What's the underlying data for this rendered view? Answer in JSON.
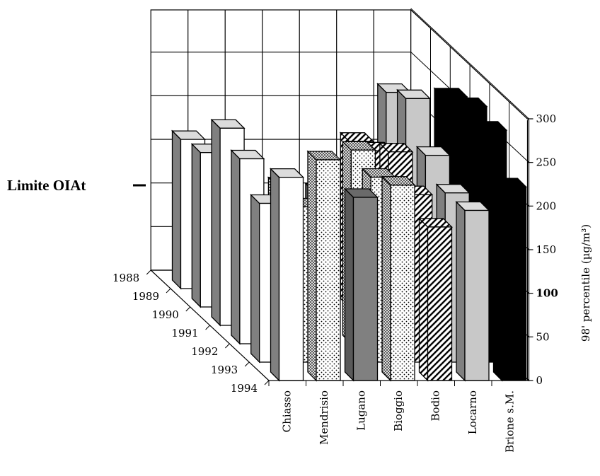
{
  "chart_data": {
    "type": "bar",
    "ylabel": "98' percentile (µg/m³)",
    "yticks": [
      0,
      50,
      100,
      150,
      200,
      250,
      300
    ],
    "ylim": [
      0,
      300
    ],
    "limit_label": "Limite OIAt",
    "limit_value": 100,
    "years": [
      "1988",
      "1989",
      "1990",
      "1991",
      "1992",
      "1993",
      "1994"
    ],
    "stations": [
      "Chiasso",
      "Mendrisio",
      "Lugano",
      "Bioggio",
      "Bodio",
      "Locarno",
      "Brione s.M."
    ],
    "station_colors": {
      "Chiasso": "#ffffff",
      "Mendrisio": "#dcdcdc",
      "Lugano": "#808080",
      "Bioggio": "#ffffff",
      "Bodio": "#bbbbbb",
      "Locarno": "#c8c8c8",
      "Brione s.M.": "#000000"
    },
    "series": [
      {
        "name": "Chiasso",
        "values": [
          null,
          171,
          177,
          226,
          212,
          182,
          233
        ]
      },
      {
        "name": "Mendrisio",
        "values": [
          null,
          null,
          null,
          null,
          181,
          178,
          253
        ]
      },
      {
        "name": "Lugano",
        "values": [
          null,
          null,
          null,
          null,
          174,
          null,
          210
        ]
      },
      {
        "name": "Bioggio",
        "values": [
          null,
          null,
          null,
          null,
          222,
          212,
          224
        ]
      },
      {
        "name": "Bodio",
        "values": [
          null,
          null,
          190,
          200,
          220,
          192,
          176
        ]
      },
      {
        "name": "Locarno",
        "values": [
          null,
          null,
          246,
          260,
          216,
          194,
          195
        ]
      },
      {
        "name": "Brione s.M.",
        "values": [
          null,
          null,
          null,
          262,
          272,
          266,
          222
        ]
      }
    ]
  }
}
